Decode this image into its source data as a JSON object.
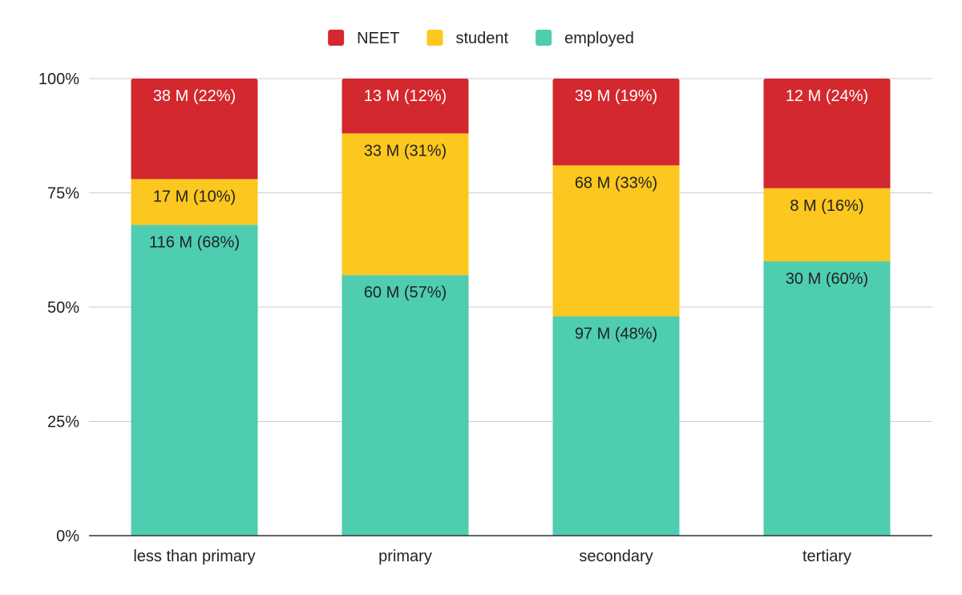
{
  "chart_data": {
    "type": "bar",
    "stacked": true,
    "percent_stacked": true,
    "categories": [
      "less than primary",
      "primary",
      "secondary",
      "tertiary"
    ],
    "series": [
      {
        "name": "employed",
        "color": "#4ecdb0",
        "values": [
          68,
          57,
          48,
          60
        ],
        "labels": [
          "116 M (68%)",
          "60 M (57%)",
          "97 M (48%)",
          "30 M (60%)"
        ],
        "label_color": "#222222"
      },
      {
        "name": "student",
        "color": "#fcc71e",
        "values": [
          10,
          31,
          33,
          16
        ],
        "labels": [
          "17 M (10%)",
          "33 M (31%)",
          "68 M (33%)",
          "8 M (16%)"
        ],
        "label_color": "#222222"
      },
      {
        "name": "NEET",
        "color": "#d3282e",
        "values": [
          22,
          12,
          19,
          24
        ],
        "labels": [
          "38 M (22%)",
          "13 M (12%)",
          "39 M (19%)",
          "12 M (24%)"
        ],
        "label_color": "#ffffff"
      }
    ],
    "legend_order": [
      "NEET",
      "student",
      "employed"
    ],
    "y_ticks": [
      "0%",
      "25%",
      "50%",
      "75%",
      "100%"
    ],
    "ylim": [
      0,
      100
    ],
    "grid": true,
    "legend_position": "top-center"
  }
}
